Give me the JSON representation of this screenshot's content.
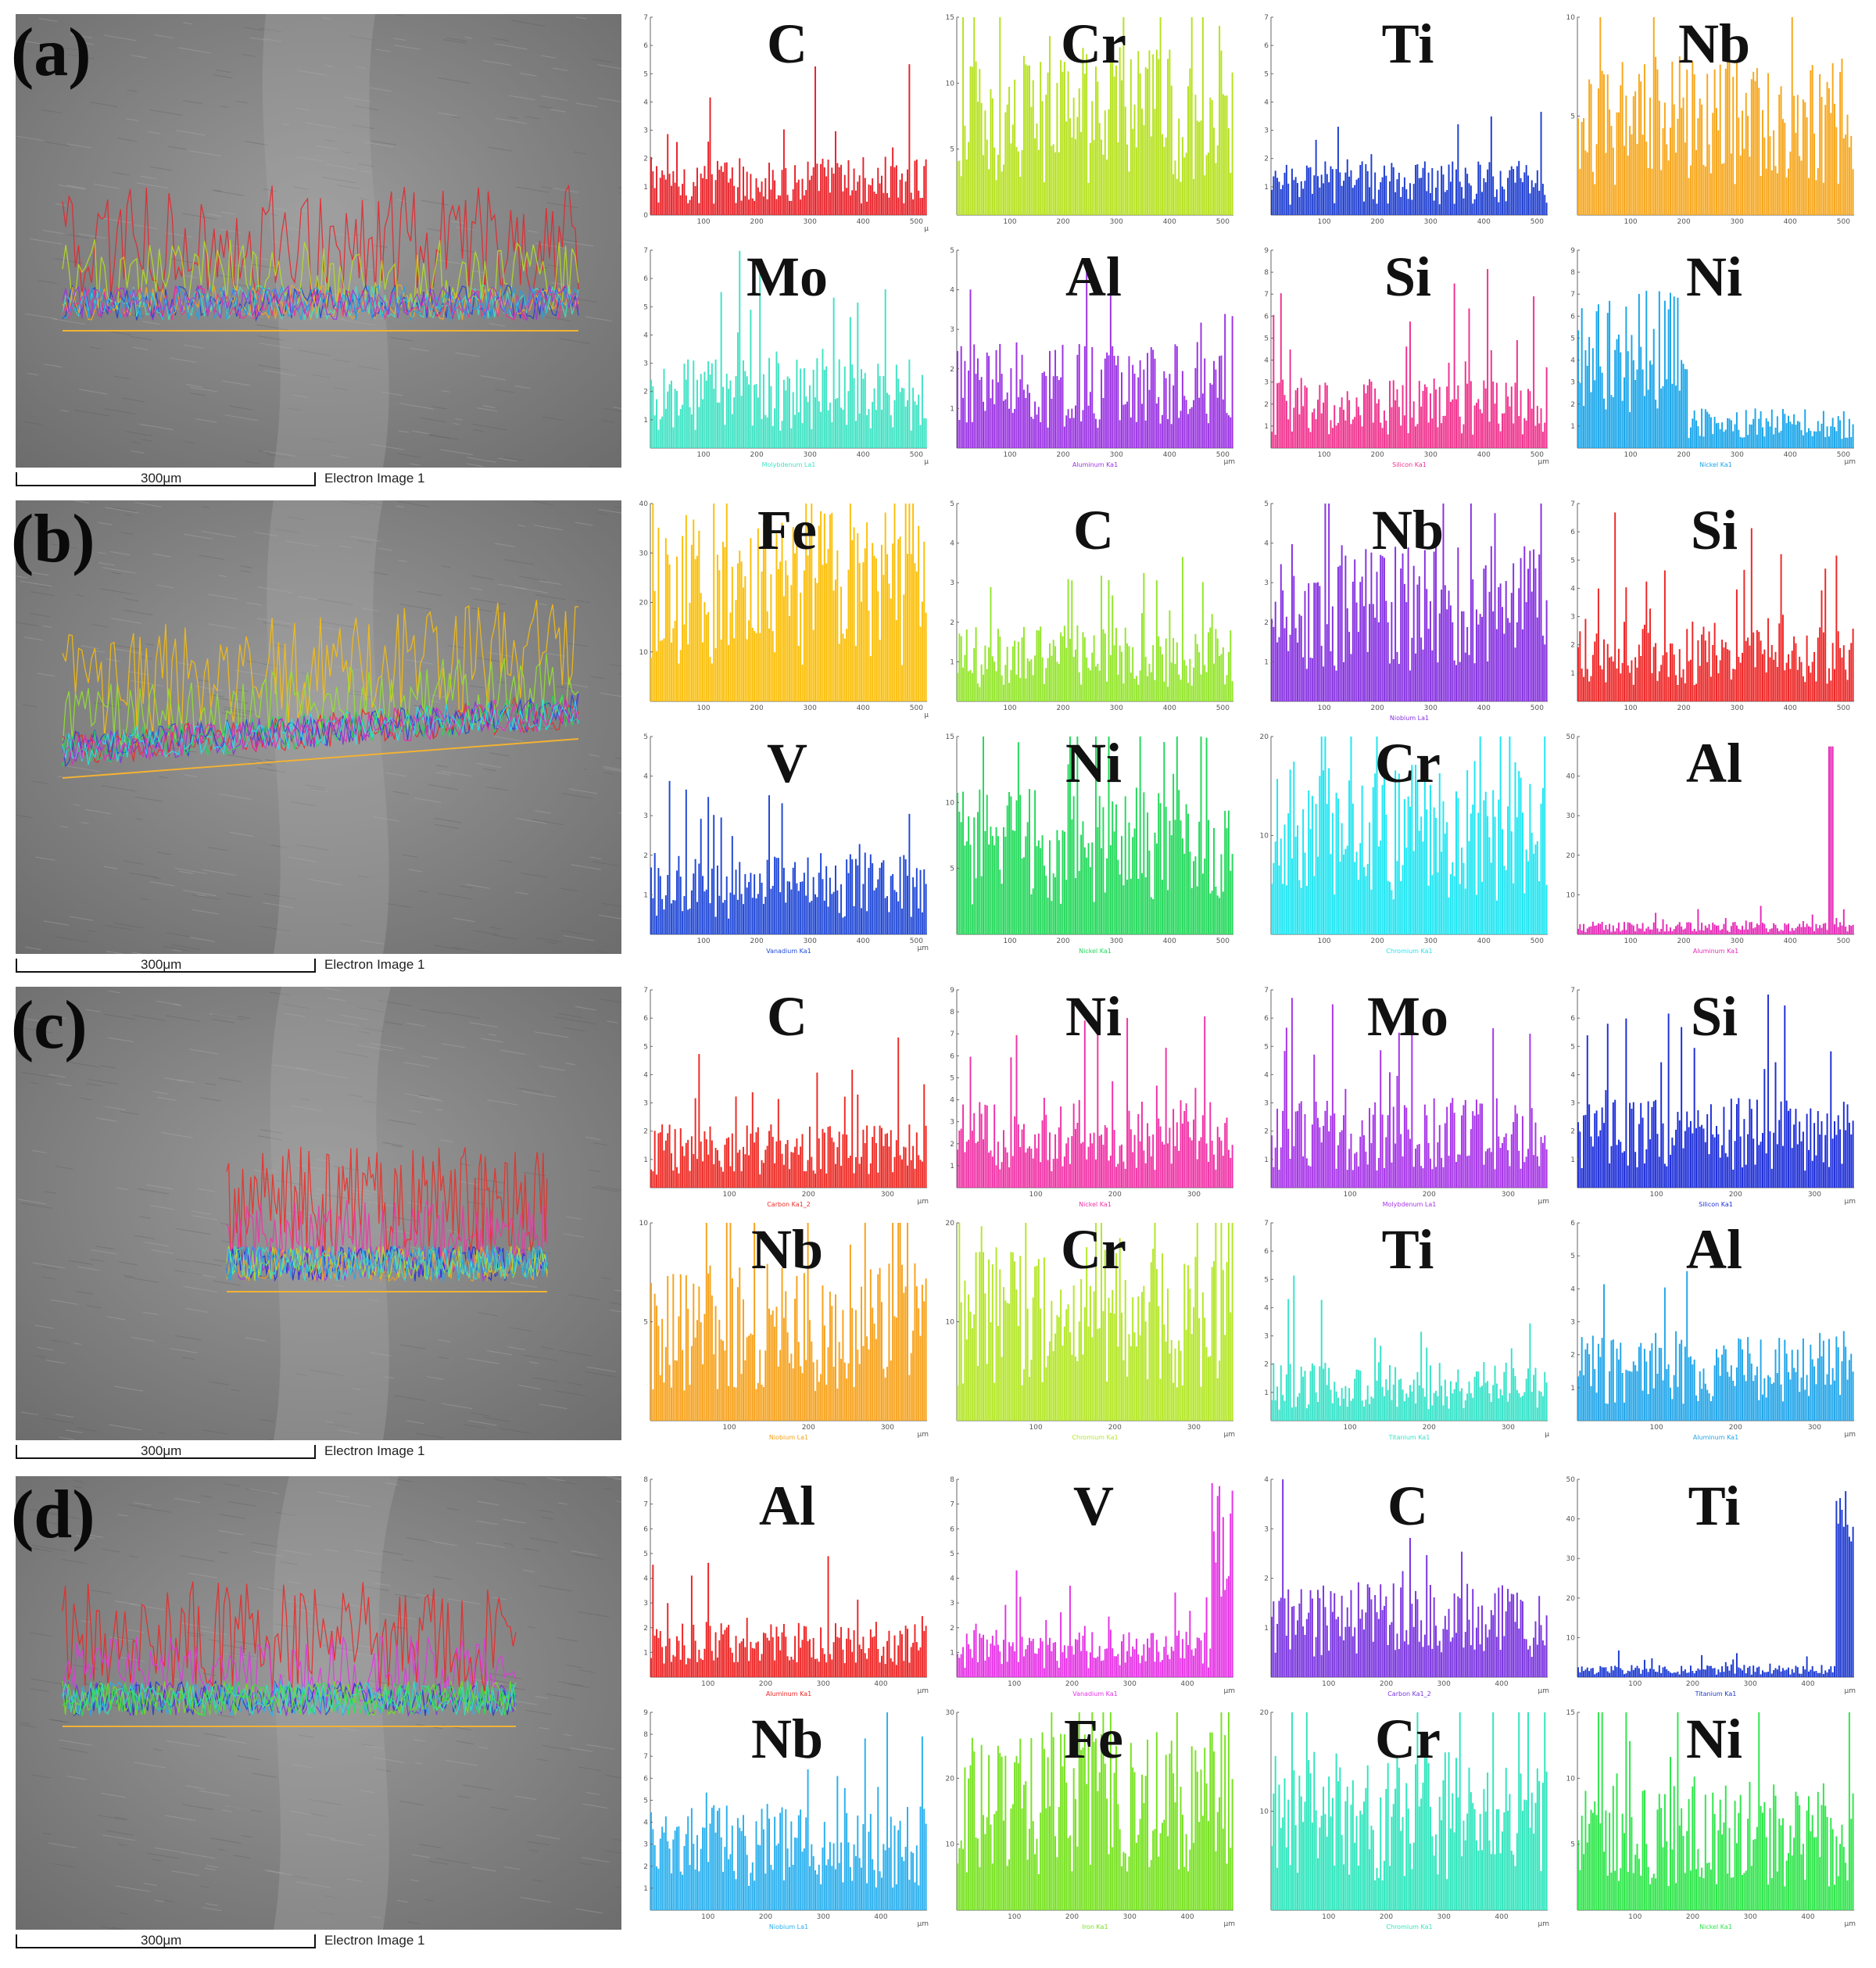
{
  "panels": [
    {
      "label": "(a)",
      "scale_bar": "300μm",
      "image_caption": "Electron Image 1",
      "charts": [
        {
          "element": "C",
          "color": "#e8232a",
          "ymax": 7,
          "level": 1.3,
          "y_ticks": [
            "0",
            "1",
            "2",
            "3",
            "4",
            "5",
            "6",
            "7"
          ],
          "x_ticks": [
            "100",
            "200",
            "300",
            "400",
            "500"
          ],
          "x_unit": "µ",
          "caption": ""
        },
        {
          "element": "Cr",
          "color": "#b6e21e",
          "ymax": 15,
          "level": 8,
          "y_ticks": [
            "5",
            "10",
            "15"
          ],
          "x_ticks": [
            "100",
            "200",
            "300",
            "400",
            "500"
          ],
          "x_unit": "",
          "caption": ""
        },
        {
          "element": "Ti",
          "color": "#1f3fd1",
          "ymax": 7,
          "level": 1.2,
          "y_ticks": [
            "1",
            "2",
            "3",
            "4",
            "5",
            "6",
            "7"
          ],
          "x_ticks": [
            "100",
            "200",
            "300",
            "400",
            "500"
          ],
          "x_unit": "",
          "caption": ""
        },
        {
          "element": "Nb",
          "color": "#f7a71c",
          "ymax": 10,
          "level": 5,
          "y_ticks": [
            "5",
            "10"
          ],
          "x_ticks": [
            "100",
            "200",
            "300",
            "400",
            "500"
          ],
          "x_unit": "",
          "caption": ""
        },
        {
          "element": "Mo",
          "color": "#3fe3c4",
          "ymax": 7,
          "level": 2,
          "y_ticks": [
            "1",
            "2",
            "3",
            "4",
            "5",
            "6",
            "7"
          ],
          "x_ticks": [
            "100",
            "200",
            "300",
            "400",
            "500"
          ],
          "x_unit": "µ",
          "caption": "Molybdenum La1"
        },
        {
          "element": "Al",
          "color": "#9b33e3",
          "ymax": 5,
          "level": 1.7,
          "y_ticks": [
            "1",
            "2",
            "3",
            "4",
            "5"
          ],
          "x_ticks": [
            "100",
            "200",
            "300",
            "400",
            "500"
          ],
          "x_unit": "µm",
          "caption": "Aluminum Ka1"
        },
        {
          "element": "Si",
          "color": "#f0328e",
          "ymax": 9,
          "level": 2,
          "y_ticks": [
            "1",
            "2",
            "3",
            "4",
            "5",
            "6",
            "7",
            "8",
            "9"
          ],
          "x_ticks": [
            "100",
            "200",
            "300",
            "400",
            "500"
          ],
          "x_unit": "µm",
          "caption": "Silicon Ka1"
        },
        {
          "element": "Ni",
          "color": "#1aa6ea",
          "ymax": 9,
          "level": 1.5,
          "y_ticks": [
            "1",
            "2",
            "3",
            "4",
            "5",
            "6",
            "7",
            "8",
            "9"
          ],
          "x_ticks": [
            "100",
            "200",
            "300",
            "400",
            "500"
          ],
          "x_unit": "µm",
          "caption": "Nickel Ka1"
        }
      ]
    },
    {
      "label": "(b)",
      "scale_bar": "300μm",
      "image_caption": "Electron Image 1",
      "charts": [
        {
          "element": "Fe",
          "color": "#fbbf08",
          "ymax": 40,
          "level": 24,
          "y_ticks": [
            "10",
            "20",
            "30",
            "40"
          ],
          "x_ticks": [
            "100",
            "200",
            "300",
            "400",
            "500"
          ],
          "x_unit": "µ",
          "caption": ""
        },
        {
          "element": "C",
          "color": "#93e62a",
          "ymax": 5,
          "level": 1.2,
          "y_ticks": [
            "1",
            "2",
            "3",
            "4",
            "5"
          ],
          "x_ticks": [
            "100",
            "200",
            "300",
            "400",
            "500"
          ],
          "x_unit": "",
          "caption": ""
        },
        {
          "element": "Nb",
          "color": "#8631e0",
          "ymax": 5,
          "level": 2.5,
          "y_ticks": [
            "1",
            "2",
            "3",
            "4",
            "5"
          ],
          "x_ticks": [
            "100",
            "200",
            "300",
            "400",
            "500"
          ],
          "x_unit": "",
          "caption": "Niobium La1"
        },
        {
          "element": "Si",
          "color": "#ee2626",
          "ymax": 7,
          "level": 1.8,
          "y_ticks": [
            "1",
            "2",
            "3",
            "4",
            "5",
            "6",
            "7"
          ],
          "x_ticks": [
            "100",
            "200",
            "300",
            "400",
            "500"
          ],
          "x_unit": "",
          "caption": ""
        },
        {
          "element": "V",
          "color": "#2048d6",
          "ymax": 5,
          "level": 1.3,
          "y_ticks": [
            "1",
            "2",
            "3",
            "4",
            "5"
          ],
          "x_ticks": [
            "100",
            "200",
            "300",
            "400",
            "500"
          ],
          "x_unit": "µm",
          "caption": "Vanadium Ka1"
        },
        {
          "element": "Ni",
          "color": "#22d95a",
          "ymax": 15,
          "level": 7,
          "y_ticks": [
            "5",
            "10",
            "15"
          ],
          "x_ticks": [
            "100",
            "200",
            "300",
            "400",
            "500"
          ],
          "x_unit": "",
          "caption": "Nickel Ka1"
        },
        {
          "element": "Cr",
          "color": "#1ee6f2",
          "ymax": 20,
          "level": 11,
          "y_ticks": [
            "10",
            "20"
          ],
          "x_ticks": [
            "100",
            "200",
            "300",
            "400",
            "500"
          ],
          "x_unit": "",
          "caption": "Chromium Ka1"
        },
        {
          "element": "Al",
          "color": "#e62ab8",
          "ymax": 50,
          "level": 2,
          "y_ticks": [
            "10",
            "20",
            "30",
            "40",
            "50"
          ],
          "x_ticks": [
            "100",
            "200",
            "300",
            "400",
            "500"
          ],
          "x_unit": "",
          "caption": "Aluminum Ka1"
        }
      ]
    },
    {
      "label": "(c)",
      "scale_bar": "300μm",
      "image_caption": "Electron Image 1",
      "charts": [
        {
          "element": "C",
          "color": "#ee2a24",
          "ymax": 7,
          "level": 1.4,
          "y_ticks": [
            "1",
            "2",
            "3",
            "4",
            "5",
            "6",
            "7"
          ],
          "x_ticks": [
            "100",
            "200",
            "300"
          ],
          "x_unit": "µm",
          "caption": "Carbon Ka1_2"
        },
        {
          "element": "Ni",
          "color": "#f032a6",
          "ymax": 9,
          "level": 2.5,
          "y_ticks": [
            "1",
            "2",
            "3",
            "4",
            "5",
            "6",
            "7",
            "8",
            "9"
          ],
          "x_ticks": [
            "100",
            "200",
            "300"
          ],
          "x_unit": "",
          "caption": "Nickel Ka1"
        },
        {
          "element": "Mo",
          "color": "#a734e8",
          "ymax": 7,
          "level": 2,
          "y_ticks": [
            "1",
            "2",
            "3",
            "4",
            "5",
            "6",
            "7"
          ],
          "x_ticks": [
            "100",
            "200",
            "300"
          ],
          "x_unit": "µm",
          "caption": "Molybdenum La1"
        },
        {
          "element": "Si",
          "color": "#1d2ed8",
          "ymax": 7,
          "level": 2,
          "y_ticks": [
            "1",
            "2",
            "3",
            "4",
            "5",
            "6",
            "7"
          ],
          "x_ticks": [
            "100",
            "200",
            "300"
          ],
          "x_unit": "µm",
          "caption": "Silicon Ka1"
        },
        {
          "element": "Nb",
          "color": "#f7a21b",
          "ymax": 10,
          "level": 5,
          "y_ticks": [
            "5",
            "10"
          ],
          "x_ticks": [
            "100",
            "200",
            "300"
          ],
          "x_unit": "µm",
          "caption": "Niobium La1"
        },
        {
          "element": "Cr",
          "color": "#b4e726",
          "ymax": 20,
          "level": 11,
          "y_ticks": [
            "10",
            "20"
          ],
          "x_ticks": [
            "100",
            "200",
            "300"
          ],
          "x_unit": "µm",
          "caption": "Chromium Ka1"
        },
        {
          "element": "Ti",
          "color": "#36e3c9",
          "ymax": 7,
          "level": 1.3,
          "y_ticks": [
            "1",
            "2",
            "3",
            "4",
            "5",
            "6",
            "7"
          ],
          "x_ticks": [
            "100",
            "200",
            "300"
          ],
          "x_unit": "µ",
          "caption": "Titanium Ka1"
        },
        {
          "element": "Al",
          "color": "#22a6ea",
          "ymax": 6,
          "level": 1.7,
          "y_ticks": [
            "1",
            "2",
            "3",
            "4",
            "5",
            "6"
          ],
          "x_ticks": [
            "100",
            "200",
            "300"
          ],
          "x_unit": "µm",
          "caption": "Aluminum Ka1"
        }
      ]
    },
    {
      "label": "(d)",
      "scale_bar": "300μm",
      "image_caption": "Electron Image 1",
      "charts": [
        {
          "element": "Al",
          "color": "#ee2424",
          "ymax": 8,
          "level": 1.4,
          "y_ticks": [
            "1",
            "2",
            "3",
            "4",
            "5",
            "6",
            "7",
            "8"
          ],
          "x_ticks": [
            "100",
            "200",
            "300",
            "400"
          ],
          "x_unit": "µm",
          "caption": "Aluminum Ka1"
        },
        {
          "element": "V",
          "color": "#e632e6",
          "ymax": 8,
          "level": 1.2,
          "y_ticks": [
            "1",
            "2",
            "3",
            "4",
            "5",
            "6",
            "7",
            "8"
          ],
          "x_ticks": [
            "100",
            "200",
            "300",
            "400"
          ],
          "x_unit": "µm",
          "caption": "Vanadium Ka1"
        },
        {
          "element": "C",
          "color": "#7a34e0",
          "ymax": 4,
          "level": 1.2,
          "y_ticks": [
            "1",
            "2",
            "3",
            "4"
          ],
          "x_ticks": [
            "100",
            "200",
            "300",
            "400"
          ],
          "x_unit": "µm",
          "caption": "Carbon Ka1_2"
        },
        {
          "element": "Ti",
          "color": "#1d3ad2",
          "ymax": 50,
          "level": 2,
          "y_ticks": [
            "10",
            "20",
            "30",
            "40",
            "50"
          ],
          "x_ticks": [
            "100",
            "200",
            "300",
            "400"
          ],
          "x_unit": "µm",
          "caption": "Titanium Ka1"
        },
        {
          "element": "Nb",
          "color": "#2ab0ee",
          "ymax": 9,
          "level": 3,
          "y_ticks": [
            "1",
            "2",
            "3",
            "4",
            "5",
            "6",
            "7",
            "8",
            "9"
          ],
          "x_ticks": [
            "100",
            "200",
            "300",
            "400"
          ],
          "x_unit": "µm",
          "caption": "Niobium La1"
        },
        {
          "element": "Fe",
          "color": "#76e21e",
          "ymax": 30,
          "level": 17,
          "y_ticks": [
            "10",
            "20",
            "30"
          ],
          "x_ticks": [
            "100",
            "200",
            "300",
            "400"
          ],
          "x_unit": "µm",
          "caption": "Iron Ka1"
        },
        {
          "element": "Cr",
          "color": "#2ee6bd",
          "ymax": 20,
          "level": 10,
          "y_ticks": [
            "10",
            "20"
          ],
          "x_ticks": [
            "100",
            "200",
            "300",
            "400"
          ],
          "x_unit": "µm",
          "caption": "Chromium Ka1"
        },
        {
          "element": "Ni",
          "color": "#2ee64a",
          "ymax": 15,
          "level": 6,
          "y_ticks": [
            "5",
            "10",
            "15"
          ],
          "x_ticks": [
            "100",
            "200",
            "300",
            "400"
          ],
          "x_unit": "µm",
          "caption": "Nickel Ka1"
        }
      ]
    }
  ]
}
